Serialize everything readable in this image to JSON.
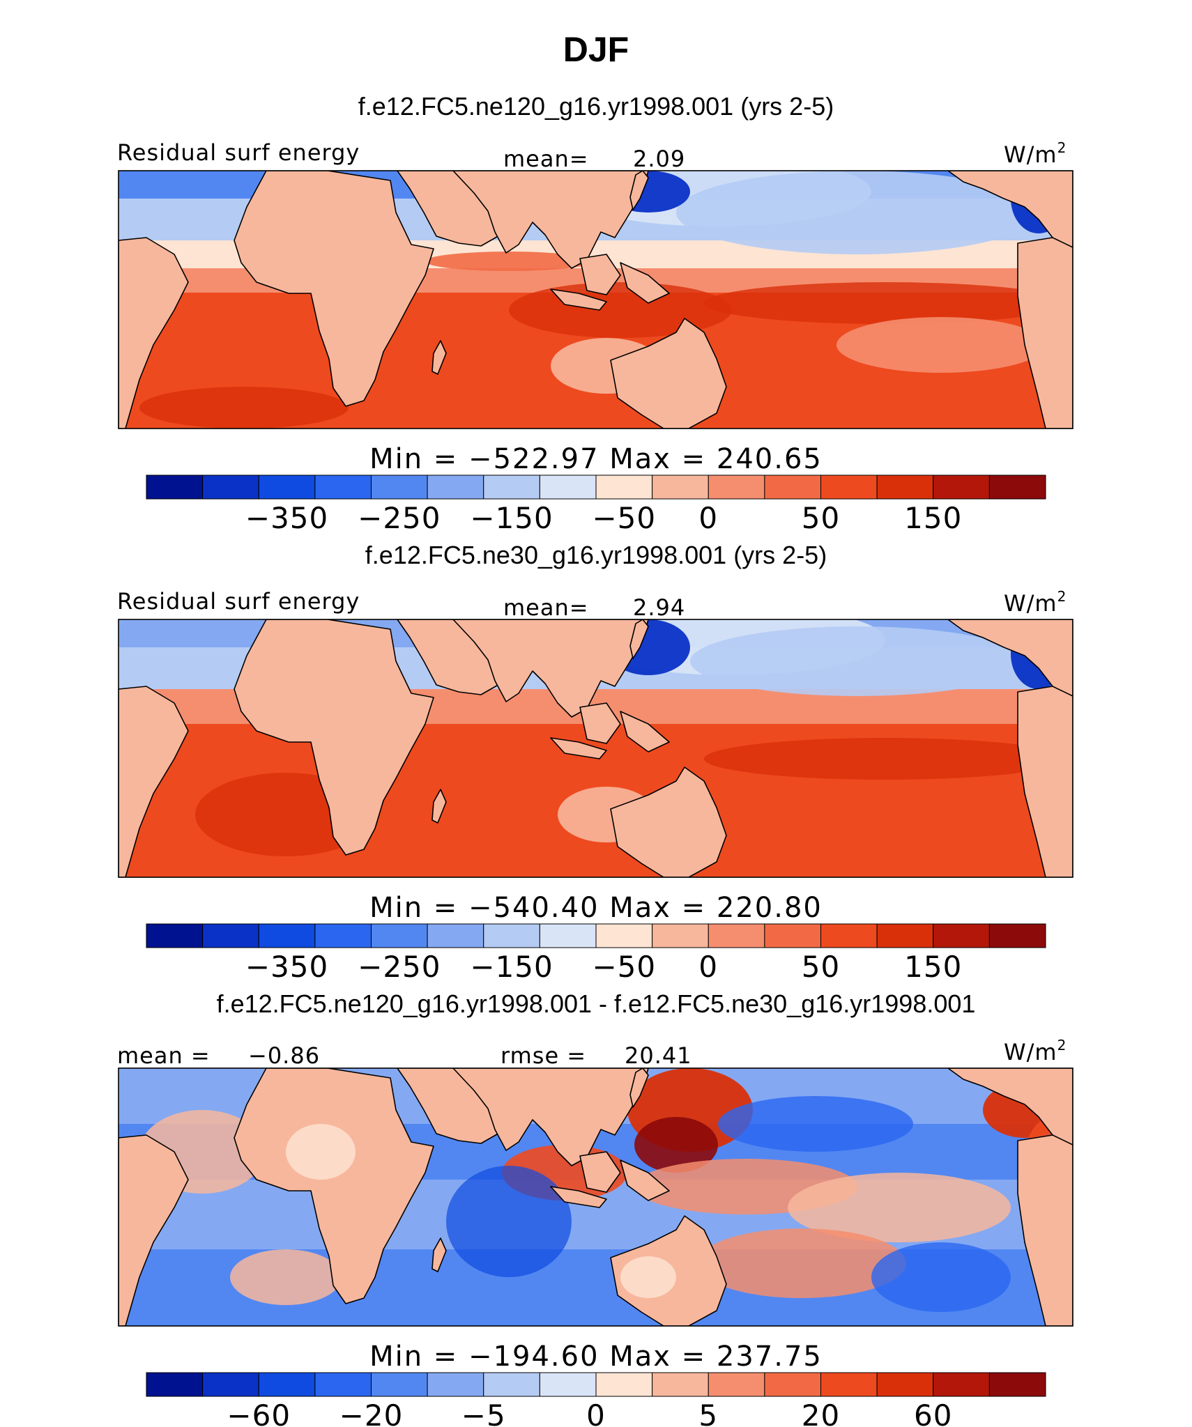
{
  "figure": {
    "title": "DJF"
  },
  "colors": {
    "level_colors": [
      "#00128f",
      "#0a32c6",
      "#0f4be0",
      "#2a66f0",
      "#5287f2",
      "#84a9f2",
      "#b4cbf4",
      "#d9e5f7",
      "#fde4d3",
      "#f7b79c",
      "#f58e6f",
      "#f26a45",
      "#ee4a1f",
      "#d9300a",
      "#b3170a",
      "#8c0a0a"
    ],
    "land_pale": "#f7b79c",
    "coast": "#000000"
  },
  "chart_data": [
    {
      "type": "heatmap",
      "title": "f.e12.FC5.ne120_g16.yr1998.001 (yrs 2-5)",
      "variable": "Residual surf energy",
      "units": "W/m2",
      "units_base": "W/m",
      "units_sup": "2",
      "mean_label": "mean=",
      "mean_value": "2.09",
      "min_label": "Min",
      "min_value": "−522.97",
      "max_label": "Max",
      "max_value": "240.65",
      "colorbar_ticks": [
        "−350",
        "−250",
        "−150",
        "−50",
        "0",
        "50",
        "150"
      ],
      "colorbar_levels": [
        -450,
        -400,
        -350,
        -300,
        -250,
        -200,
        -150,
        -100,
        -50,
        -20,
        0,
        20,
        50,
        100,
        150,
        200
      ]
    },
    {
      "type": "heatmap",
      "title": "f.e12.FC5.ne30_g16.yr1998.001 (yrs 2-5)",
      "variable": "Residual surf energy",
      "units": "W/m2",
      "units_base": "W/m",
      "units_sup": "2",
      "mean_label": "mean=",
      "mean_value": "2.94",
      "min_label": "Min",
      "min_value": "−540.40",
      "max_label": "Max",
      "max_value": "220.80",
      "colorbar_ticks": [
        "−350",
        "−250",
        "−150",
        "−50",
        "0",
        "50",
        "150"
      ],
      "colorbar_levels": [
        -450,
        -400,
        -350,
        -300,
        -250,
        -200,
        -150,
        -100,
        -50,
        -20,
        0,
        20,
        50,
        100,
        150,
        200
      ]
    },
    {
      "type": "heatmap",
      "title": "f.e12.FC5.ne120_g16.yr1998.001 - f.e12.FC5.ne30_g16.yr1998.001",
      "units": "W/m2",
      "units_base": "W/m",
      "units_sup": "2",
      "mean_label": "mean =",
      "mean_value": "−0.86",
      "rmse_label": "rmse =",
      "rmse_value": "20.41",
      "min_label": "Min",
      "min_value": "−194.60",
      "max_label": "Max",
      "max_value": "237.75",
      "colorbar_ticks": [
        "−60",
        "−20",
        "−5",
        "0",
        "5",
        "20",
        "60"
      ],
      "colorbar_levels": [
        -80,
        -60,
        -40,
        -20,
        -10,
        -5,
        -2,
        0,
        2,
        5,
        10,
        20,
        40,
        60,
        80
      ]
    }
  ]
}
